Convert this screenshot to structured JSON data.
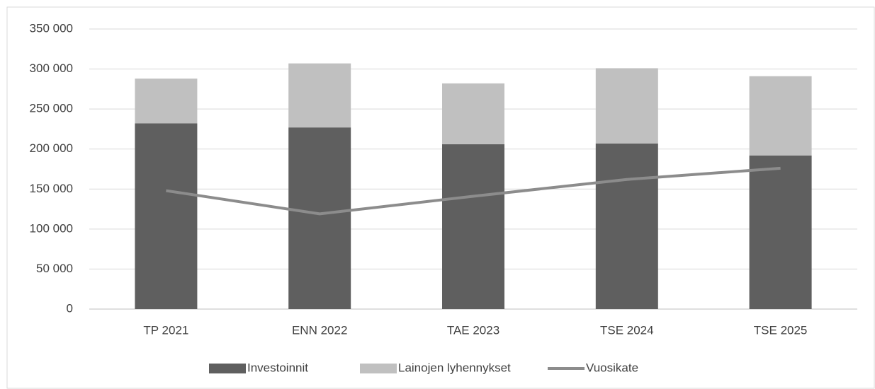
{
  "chart_data": {
    "type": "stacked-bar-line",
    "categories": [
      "TP 2021",
      "ENN 2022",
      "TAE 2023",
      "TSE 2024",
      "TSE 2025"
    ],
    "series": [
      {
        "name": "Investoinnit",
        "color": "#5f5f5f",
        "kind": "bar",
        "values": [
          232000,
          227000,
          206000,
          207000,
          192000
        ]
      },
      {
        "name": "Lainojen lyhennykset",
        "color": "#c0c0c0",
        "kind": "bar",
        "values": [
          56000,
          80000,
          76000,
          94000,
          99000
        ]
      },
      {
        "name": "Vuosikate",
        "color": "#8c8c8c",
        "kind": "line",
        "values": [
          148000,
          119000,
          141000,
          162000,
          176000
        ]
      }
    ],
    "ylim": [
      0,
      350000
    ],
    "yticks": [
      0,
      {
        "value": 50000,
        "label": "50 000"
      },
      {
        "value": 100000,
        "label": "100 000"
      },
      {
        "value": 150000,
        "label": "150 000"
      },
      {
        "value": 200000,
        "label": "200 000"
      },
      {
        "value": 250000,
        "label": "250 000"
      },
      {
        "value": 300000,
        "label": "300 000"
      },
      {
        "value": 350000,
        "label": "350 000"
      }
    ],
    "grid": true,
    "legend": "bottom"
  }
}
